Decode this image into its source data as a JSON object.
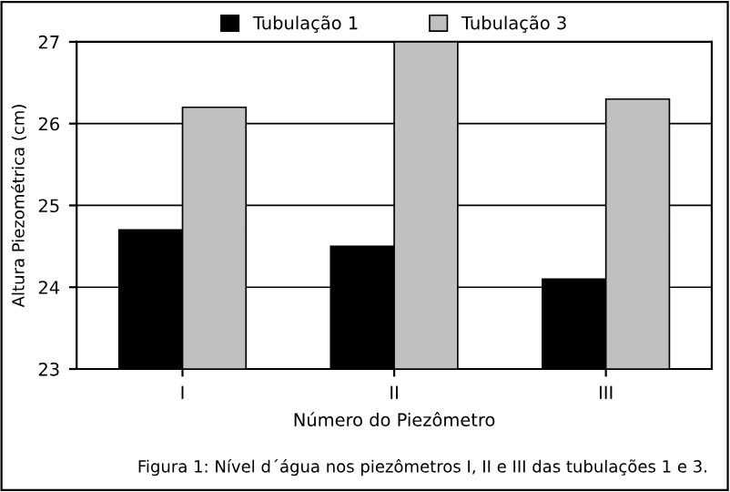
{
  "chart_data": {
    "type": "bar",
    "categories": [
      "I",
      "II",
      "III"
    ],
    "series": [
      {
        "name": "Tubulação 1",
        "color": "#000000",
        "values": [
          24.7,
          24.5,
          24.1
        ]
      },
      {
        "name": "Tubulação 3",
        "color": "#c0c0c0",
        "values": [
          26.2,
          27.0,
          26.3
        ]
      }
    ],
    "xlabel": "Número do Piezômetro",
    "ylabel": "Altura Piezométrica (cm)",
    "ylim": [
      23,
      27
    ],
    "yticks": [
      23,
      24,
      25,
      26,
      27
    ],
    "grid": "y",
    "legend": "top",
    "annotations": [
      "Figura 1: Nível d´água nos piezômetros I, II e III das tubulações 1 e 3."
    ]
  }
}
